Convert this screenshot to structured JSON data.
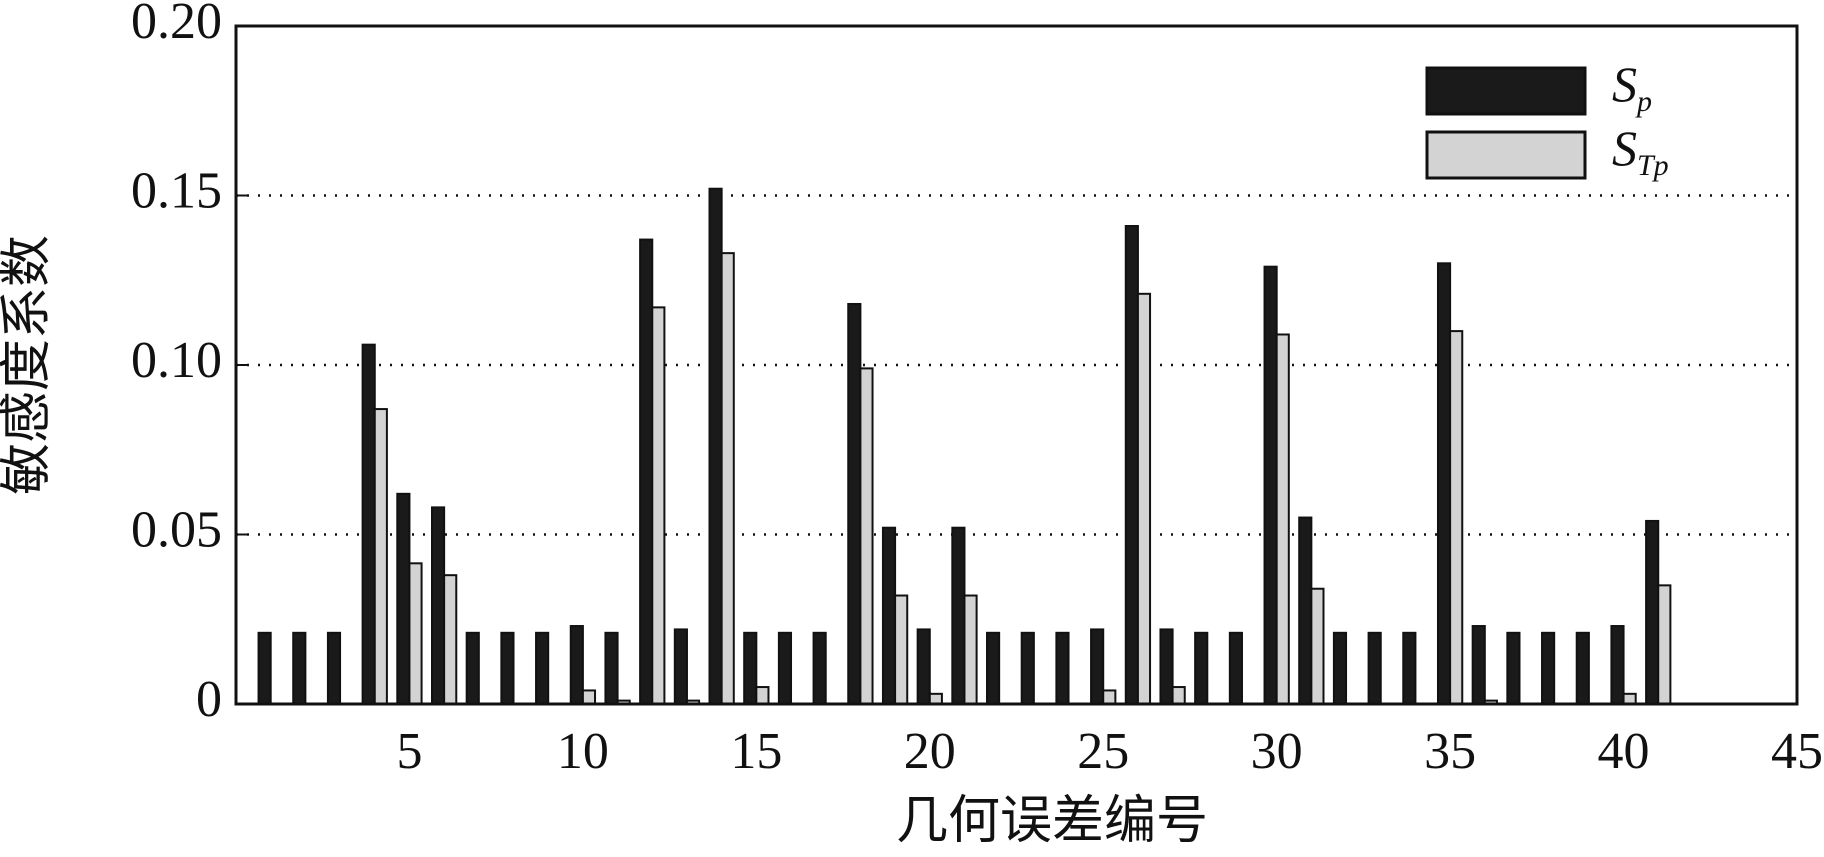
{
  "chart_data": {
    "type": "bar",
    "x_label": "几何误差编号",
    "y_label": "敏感度系数",
    "x": [
      1,
      2,
      3,
      4,
      5,
      6,
      7,
      8,
      9,
      10,
      11,
      12,
      13,
      14,
      15,
      16,
      17,
      18,
      19,
      20,
      21,
      22,
      23,
      24,
      25,
      26,
      27,
      28,
      29,
      30,
      31,
      32,
      33,
      34,
      35,
      36,
      37,
      38,
      39,
      40,
      41
    ],
    "series": [
      {
        "name": "Sp",
        "color": "#1a1a1a",
        "values": [
          0.021,
          0.021,
          0.021,
          0.106,
          0.062,
          0.058,
          0.021,
          0.021,
          0.021,
          0.023,
          0.021,
          0.137,
          0.022,
          0.152,
          0.021,
          0.021,
          0.021,
          0.118,
          0.052,
          0.022,
          0.052,
          0.021,
          0.021,
          0.021,
          0.022,
          0.141,
          0.022,
          0.021,
          0.021,
          0.129,
          0.055,
          0.021,
          0.021,
          0.021,
          0.13,
          0.023,
          0.021,
          0.021,
          0.021,
          0.023,
          0.054
        ]
      },
      {
        "name": "STp",
        "color": "#d3d3d3",
        "values": [
          0,
          0,
          0,
          0.087,
          0.0415,
          0.038,
          0,
          0,
          0,
          0.004,
          0.001,
          0.117,
          0.001,
          0.133,
          0.005,
          0,
          0,
          0.099,
          0.032,
          0.003,
          0.032,
          0,
          0,
          0,
          0.004,
          0.121,
          0.005,
          0,
          0,
          0.109,
          0.034,
          0,
          0,
          0,
          0.11,
          0.001,
          0,
          0,
          0,
          0.003,
          0.035
        ]
      }
    ],
    "xlim": [
      0,
      45
    ],
    "xticks": [
      5,
      10,
      15,
      20,
      25,
      30,
      35,
      40,
      45
    ],
    "ylim": [
      0,
      0.2
    ],
    "yticks": [
      0,
      0.05,
      {
        "value": 0.1,
        "label": "0.10"
      },
      0.15,
      {
        "value": 0.2,
        "label": "0.20"
      }
    ],
    "grid": true,
    "legend": "upper right"
  }
}
